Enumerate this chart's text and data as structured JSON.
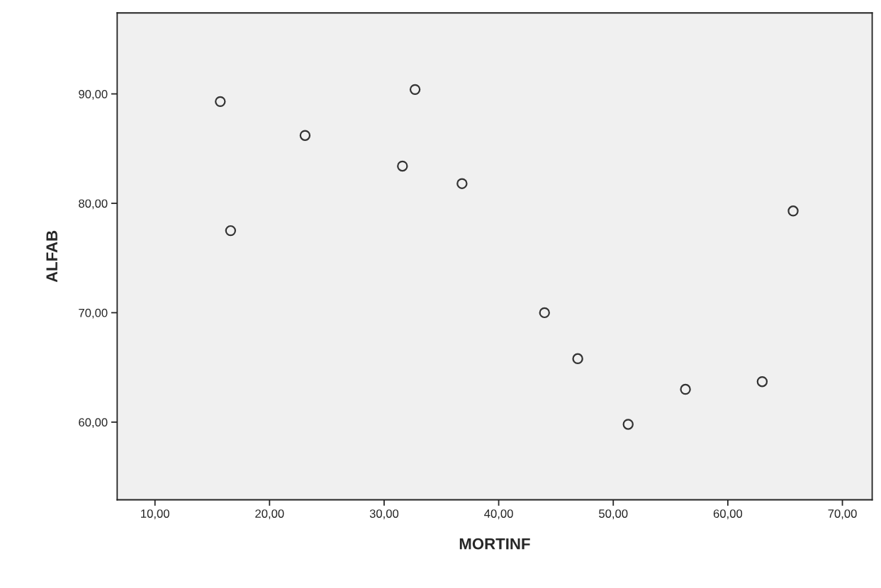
{
  "chart_data": {
    "type": "scatter",
    "xlabel": "MORTINF",
    "ylabel": "ALFAB",
    "x": [
      15.7,
      16.6,
      23.1,
      31.6,
      32.7,
      36.8,
      44.0,
      46.9,
      51.3,
      56.3,
      63.0,
      65.7
    ],
    "values": [
      89.3,
      77.5,
      86.2,
      83.4,
      90.4,
      81.8,
      70.0,
      65.8,
      59.8,
      63.0,
      63.7,
      79.3
    ],
    "color": "#333333",
    "marker": "circle",
    "grid": false,
    "legend": false,
    "xlim": [
      6.7,
      72.6
    ],
    "ylim": [
      52.9,
      97.4
    ],
    "xticks": [
      {
        "value": 10,
        "label": "10,00"
      },
      {
        "value": 20,
        "label": "20,00"
      },
      {
        "value": 30,
        "label": "30,00"
      },
      {
        "value": 40,
        "label": "40,00"
      },
      {
        "value": 50,
        "label": "50,00"
      },
      {
        "value": 60,
        "label": "60,00"
      },
      {
        "value": 70,
        "label": "70,00"
      }
    ],
    "yticks": [
      {
        "value": 60,
        "label": "60,00"
      },
      {
        "value": 70,
        "label": "70,00"
      },
      {
        "value": 80,
        "label": "80,00"
      },
      {
        "value": 90,
        "label": "90,00"
      }
    ]
  }
}
